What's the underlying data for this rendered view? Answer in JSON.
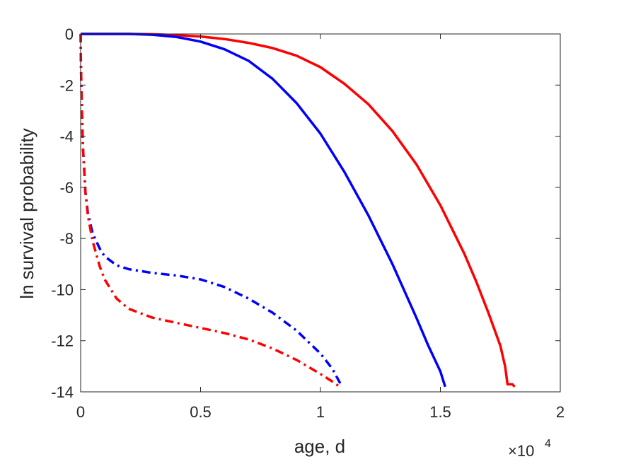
{
  "chart_data": {
    "type": "line",
    "title": "",
    "xlabel": "age, d",
    "ylabel": "ln survival probability",
    "x_exponent_label": {
      "base": "×10",
      "exponent": "4"
    },
    "xlim": [
      0,
      2
    ],
    "ylim": [
      -14,
      0
    ],
    "x_unit_multiplier": 10000,
    "xticks": [
      0,
      0.5,
      1,
      1.5,
      2
    ],
    "xtick_labels": [
      "0",
      "0.5",
      "1",
      "1.5",
      "2"
    ],
    "yticks": [
      0,
      -2,
      -4,
      -6,
      -8,
      -10,
      -12,
      -14
    ],
    "ytick_labels": [
      "0",
      "-2",
      "-4",
      "-6",
      "-8",
      "-10",
      "-12",
      "-14"
    ],
    "grid": false,
    "box": true,
    "series": [
      {
        "color": "#ff0000",
        "style": "solid",
        "x": [
          0,
          0.2,
          0.3,
          0.4,
          0.5,
          0.6,
          0.7,
          0.8,
          0.9,
          1.0,
          1.1,
          1.2,
          1.3,
          1.4,
          1.5,
          1.6,
          1.65,
          1.7,
          1.75,
          1.77,
          1.78,
          1.8,
          1.81
        ],
        "y": [
          0,
          0,
          -0.01,
          -0.05,
          -0.1,
          -0.2,
          -0.35,
          -0.55,
          -0.85,
          -1.3,
          -1.95,
          -2.75,
          -3.8,
          -5.1,
          -6.7,
          -8.6,
          -9.7,
          -10.9,
          -12.2,
          -13.0,
          -13.7,
          -13.7,
          -13.8
        ]
      },
      {
        "color": "#0000ff",
        "style": "solid",
        "x": [
          0,
          0.2,
          0.3,
          0.4,
          0.5,
          0.6,
          0.7,
          0.8,
          0.9,
          1.0,
          1.1,
          1.2,
          1.3,
          1.4,
          1.45,
          1.5,
          1.52
        ],
        "y": [
          0,
          0,
          -0.03,
          -0.12,
          -0.3,
          -0.6,
          -1.05,
          -1.75,
          -2.7,
          -3.9,
          -5.4,
          -7.1,
          -9.0,
          -11.1,
          -12.2,
          -13.2,
          -13.8
        ]
      },
      {
        "color": "#0000ff",
        "style": "dashdot",
        "x": [
          0,
          0.001,
          0.003,
          0.005,
          0.01,
          0.02,
          0.03,
          0.05,
          0.08,
          0.1,
          0.15,
          0.2,
          0.3,
          0.4,
          0.5,
          0.6,
          0.7,
          0.8,
          0.9,
          1.0,
          1.05,
          1.09
        ],
        "y": [
          0,
          -1.0,
          -2.0,
          -3.0,
          -4.5,
          -6.2,
          -7.0,
          -7.8,
          -8.4,
          -8.7,
          -9.05,
          -9.2,
          -9.35,
          -9.45,
          -9.6,
          -9.9,
          -10.35,
          -10.9,
          -11.6,
          -12.5,
          -13.1,
          -13.8
        ]
      },
      {
        "color": "#ff0000",
        "style": "dashdot",
        "x": [
          0,
          0.001,
          0.003,
          0.005,
          0.01,
          0.02,
          0.03,
          0.05,
          0.08,
          0.1,
          0.15,
          0.2,
          0.3,
          0.4,
          0.5,
          0.6,
          0.7,
          0.8,
          0.9,
          1.0,
          1.05,
          1.08
        ],
        "y": [
          0,
          -1.0,
          -2.0,
          -3.0,
          -4.5,
          -6.2,
          -7.1,
          -8.1,
          -9.1,
          -9.6,
          -10.35,
          -10.75,
          -11.1,
          -11.3,
          -11.5,
          -11.7,
          -11.95,
          -12.3,
          -12.75,
          -13.3,
          -13.6,
          -13.8
        ]
      }
    ]
  }
}
